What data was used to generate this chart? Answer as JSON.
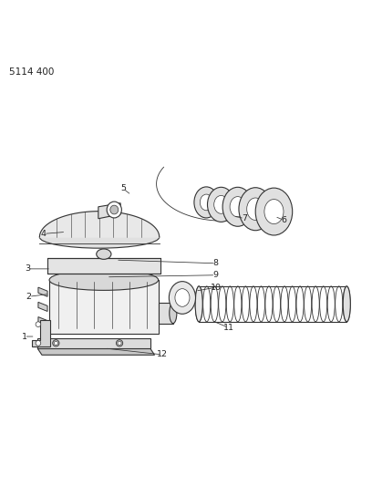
{
  "title_ref": "5114 400",
  "background_color": "#ffffff",
  "line_color": "#333333",
  "text_color": "#222222",
  "fig_width": 4.08,
  "fig_height": 5.33,
  "dpi": 100
}
